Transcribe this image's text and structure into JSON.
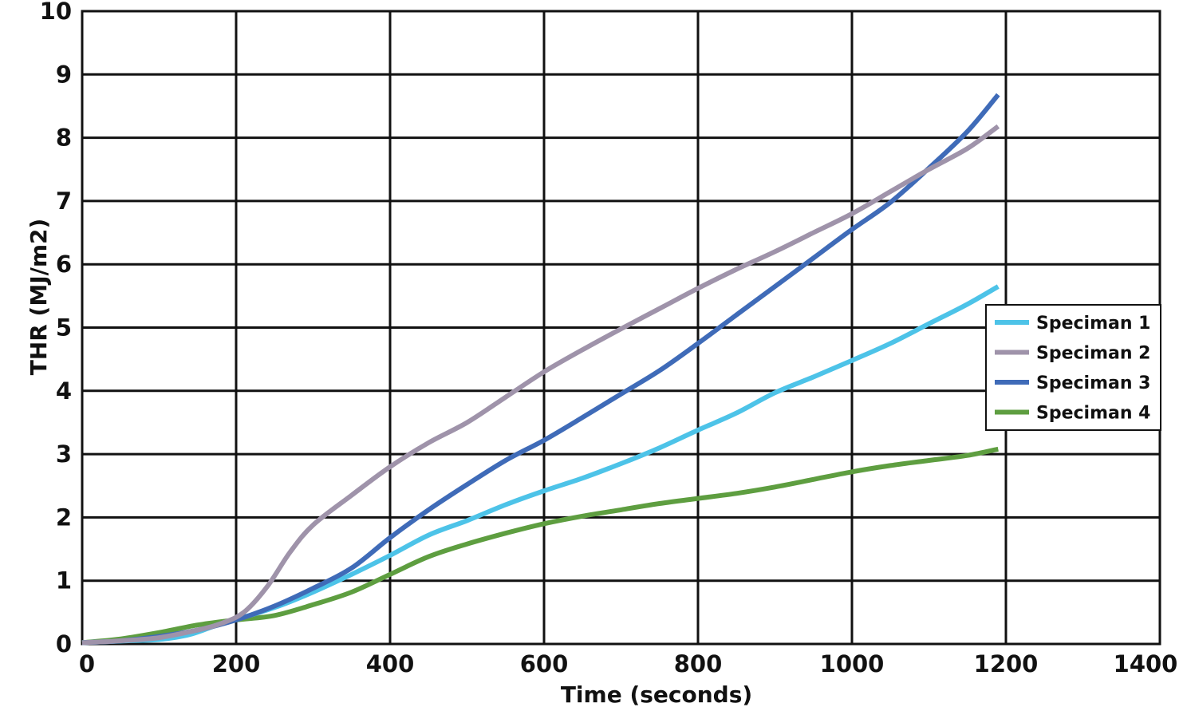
{
  "chart_data": {
    "type": "line",
    "title": "",
    "xlabel": "Time (seconds)",
    "ylabel": "THR (MJ/m2)",
    "xlim": [
      0,
      1400
    ],
    "ylim": [
      0,
      10
    ],
    "xticks": [
      0,
      200,
      400,
      600,
      800,
      1000,
      1200,
      1400
    ],
    "yticks": [
      0,
      1,
      2,
      3,
      4,
      5,
      6,
      7,
      8,
      9,
      10
    ],
    "grid": true,
    "legend_position": "right",
    "series": [
      {
        "name": "Speciman 1",
        "color": "#4dc3e8",
        "points": [
          [
            0,
            0.02
          ],
          [
            60,
            0.05
          ],
          [
            100,
            0.07
          ],
          [
            140,
            0.15
          ],
          [
            180,
            0.32
          ],
          [
            220,
            0.46
          ],
          [
            260,
            0.62
          ],
          [
            300,
            0.82
          ],
          [
            350,
            1.1
          ],
          [
            400,
            1.4
          ],
          [
            450,
            1.72
          ],
          [
            500,
            1.95
          ],
          [
            550,
            2.2
          ],
          [
            600,
            2.42
          ],
          [
            650,
            2.62
          ],
          [
            700,
            2.85
          ],
          [
            750,
            3.1
          ],
          [
            800,
            3.38
          ],
          [
            850,
            3.65
          ],
          [
            900,
            3.97
          ],
          [
            950,
            4.22
          ],
          [
            1000,
            4.48
          ],
          [
            1050,
            4.75
          ],
          [
            1100,
            5.06
          ],
          [
            1150,
            5.37
          ],
          [
            1190,
            5.65
          ]
        ]
      },
      {
        "name": "Speciman 2",
        "color": "#9f93aa",
        "points": [
          [
            0,
            0.02
          ],
          [
            50,
            0.05
          ],
          [
            100,
            0.1
          ],
          [
            150,
            0.22
          ],
          [
            180,
            0.32
          ],
          [
            210,
            0.5
          ],
          [
            240,
            0.9
          ],
          [
            270,
            1.45
          ],
          [
            300,
            1.88
          ],
          [
            350,
            2.35
          ],
          [
            400,
            2.8
          ],
          [
            450,
            3.18
          ],
          [
            500,
            3.5
          ],
          [
            550,
            3.9
          ],
          [
            600,
            4.3
          ],
          [
            650,
            4.65
          ],
          [
            700,
            4.98
          ],
          [
            750,
            5.3
          ],
          [
            800,
            5.62
          ],
          [
            850,
            5.92
          ],
          [
            900,
            6.2
          ],
          [
            950,
            6.5
          ],
          [
            1000,
            6.8
          ],
          [
            1050,
            7.15
          ],
          [
            1100,
            7.5
          ],
          [
            1150,
            7.83
          ],
          [
            1190,
            8.18
          ]
        ]
      },
      {
        "name": "Speciman 3",
        "color": "#3f6bb8",
        "points": [
          [
            0,
            0.02
          ],
          [
            50,
            0.05
          ],
          [
            100,
            0.12
          ],
          [
            150,
            0.22
          ],
          [
            200,
            0.38
          ],
          [
            250,
            0.6
          ],
          [
            300,
            0.88
          ],
          [
            350,
            1.2
          ],
          [
            400,
            1.68
          ],
          [
            450,
            2.12
          ],
          [
            500,
            2.52
          ],
          [
            550,
            2.9
          ],
          [
            600,
            3.22
          ],
          [
            650,
            3.58
          ],
          [
            700,
            3.95
          ],
          [
            750,
            4.32
          ],
          [
            800,
            4.75
          ],
          [
            850,
            5.2
          ],
          [
            900,
            5.65
          ],
          [
            950,
            6.1
          ],
          [
            1000,
            6.55
          ],
          [
            1050,
            6.98
          ],
          [
            1100,
            7.52
          ],
          [
            1150,
            8.1
          ],
          [
            1190,
            8.68
          ]
        ]
      },
      {
        "name": "Speciman 4",
        "color": "#5e9e40",
        "points": [
          [
            0,
            0.02
          ],
          [
            50,
            0.08
          ],
          [
            100,
            0.18
          ],
          [
            150,
            0.3
          ],
          [
            200,
            0.38
          ],
          [
            250,
            0.45
          ],
          [
            300,
            0.62
          ],
          [
            350,
            0.82
          ],
          [
            400,
            1.1
          ],
          [
            450,
            1.38
          ],
          [
            500,
            1.58
          ],
          [
            550,
            1.75
          ],
          [
            600,
            1.9
          ],
          [
            650,
            2.02
          ],
          [
            700,
            2.12
          ],
          [
            750,
            2.22
          ],
          [
            800,
            2.3
          ],
          [
            850,
            2.38
          ],
          [
            900,
            2.48
          ],
          [
            950,
            2.6
          ],
          [
            1000,
            2.72
          ],
          [
            1050,
            2.82
          ],
          [
            1100,
            2.9
          ],
          [
            1150,
            2.98
          ],
          [
            1190,
            3.08
          ]
        ]
      }
    ]
  }
}
